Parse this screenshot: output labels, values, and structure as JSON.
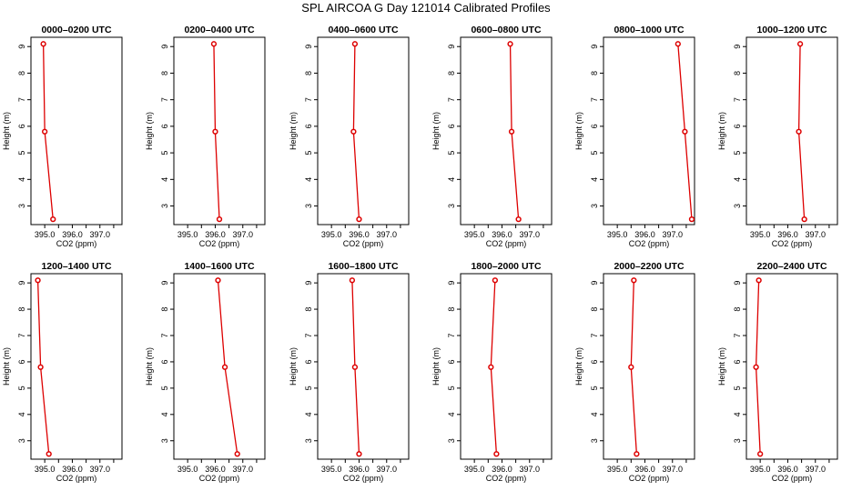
{
  "title": "SPL AIRCOA G  Day 121014  Calibrated Profiles",
  "colors": {
    "series": "#dd0000",
    "axis": "#000000",
    "background": "#ffffff"
  },
  "chart_data": {
    "type": "line",
    "xlabel": "CO2 (ppm)",
    "ylabel": "Height (m)",
    "xlim": [
      394.5,
      397.8
    ],
    "ylim": [
      2.3,
      9.35
    ],
    "xticks": [
      395.0,
      396.0,
      397.0
    ],
    "xtick_labels": [
      "395.0",
      "396.0",
      "397.0"
    ],
    "yticks": [
      3,
      4,
      5,
      6,
      7,
      8,
      9
    ],
    "ytick_labels": [
      "3",
      "4",
      "5",
      "6",
      "7",
      "8",
      "9"
    ],
    "heights": [
      9.1,
      5.8,
      2.5
    ],
    "panels": [
      {
        "title": "0000–0200 UTC",
        "co2": [
          394.95,
          395.0,
          395.3
        ]
      },
      {
        "title": "0200–0400 UTC",
        "co2": [
          395.95,
          396.0,
          396.15
        ]
      },
      {
        "title": "0400–0600 UTC",
        "co2": [
          395.85,
          395.8,
          396.0
        ]
      },
      {
        "title": "0600–0800 UTC",
        "co2": [
          396.3,
          396.35,
          396.6
        ]
      },
      {
        "title": "0800–1000 UTC",
        "co2": [
          397.2,
          397.45,
          397.7
        ]
      },
      {
        "title": "1000–1200 UTC",
        "co2": [
          396.45,
          396.4,
          396.6
        ]
      },
      {
        "title": "1200–1400 UTC",
        "co2": [
          394.75,
          394.85,
          395.15
        ]
      },
      {
        "title": "1400–1600 UTC",
        "co2": [
          396.1,
          396.35,
          396.8
        ]
      },
      {
        "title": "1600–1800 UTC",
        "co2": [
          395.75,
          395.85,
          396.0
        ]
      },
      {
        "title": "1800–2000 UTC",
        "co2": [
          395.75,
          395.6,
          395.8
        ]
      },
      {
        "title": "2000–2200 UTC",
        "co2": [
          395.6,
          395.5,
          395.7
        ]
      },
      {
        "title": "2200–2400 UTC",
        "co2": [
          394.95,
          394.85,
          395.0
        ]
      }
    ]
  }
}
